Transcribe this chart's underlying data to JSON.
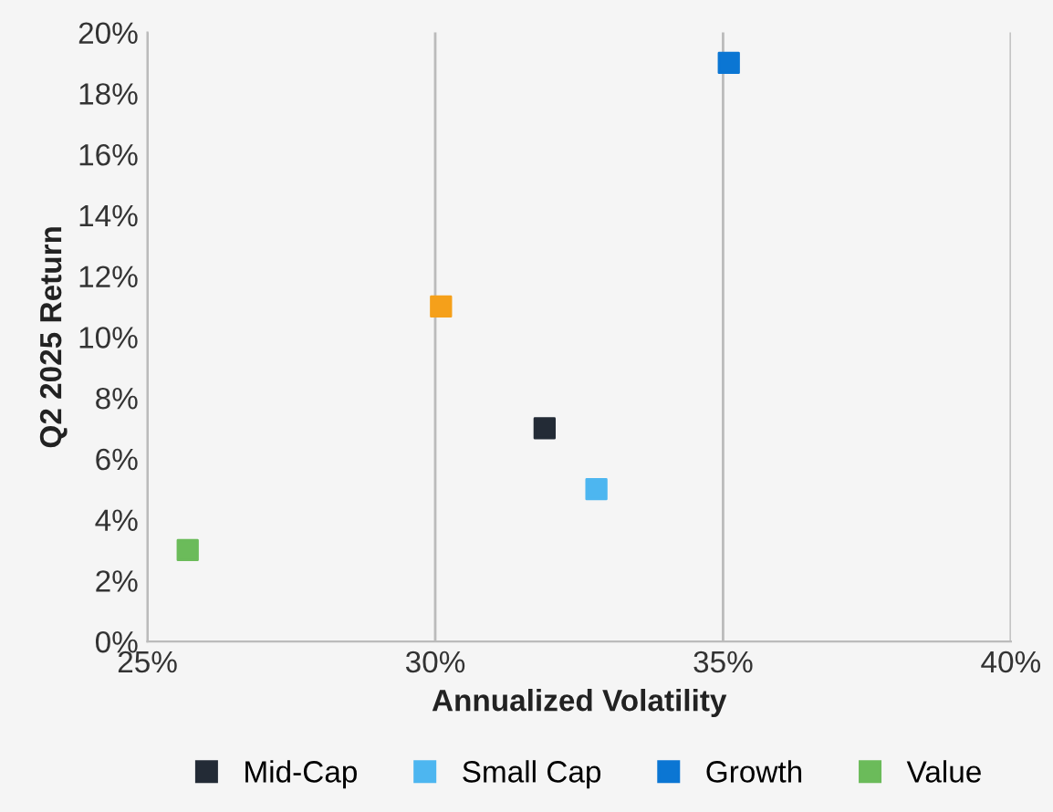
{
  "chart_data": {
    "type": "scatter",
    "xlabel": "Annualized Volatility",
    "ylabel": "Q2 2025 Return",
    "series": [
      {
        "color": "#f5a01a",
        "x": [
          30.1
        ],
        "values": [
          11
        ]
      },
      {
        "name": "Mid-Cap",
        "color": "#232b36",
        "x": [
          31.9
        ],
        "values": [
          7
        ]
      },
      {
        "name": "Small Cap",
        "color": "#4db6f0",
        "x": [
          32.8
        ],
        "values": [
          5
        ]
      },
      {
        "name": "Growth",
        "color": "#0b76d3",
        "x": [
          35.1
        ],
        "values": [
          19
        ]
      },
      {
        "name": "Value",
        "color": "#6bbb5a",
        "x": [
          25.7
        ],
        "values": [
          3
        ]
      }
    ],
    "xlim": [
      25,
      40
    ],
    "xticks": [
      {
        "value": 25,
        "label": "25%"
      },
      {
        "value": 30,
        "label": "30%"
      },
      {
        "value": 35,
        "label": "35%"
      },
      {
        "value": 40,
        "label": "40%"
      }
    ],
    "ylim": [
      0,
      20
    ],
    "yticks": [
      {
        "value": 0,
        "label": "0%"
      },
      {
        "value": 2,
        "label": "2%"
      },
      {
        "value": 4,
        "label": "4%"
      },
      {
        "value": 6,
        "label": "6%"
      },
      {
        "value": 8,
        "label": "8%"
      },
      {
        "value": 10,
        "label": "10%"
      },
      {
        "value": 12,
        "label": "12%"
      },
      {
        "value": 14,
        "label": "14%"
      },
      {
        "value": 16,
        "label": "16%"
      },
      {
        "value": 18,
        "label": "18%"
      },
      {
        "value": 20,
        "label": "20%"
      }
    ],
    "grid": "x",
    "legend": "bottom",
    "marker": "square"
  }
}
